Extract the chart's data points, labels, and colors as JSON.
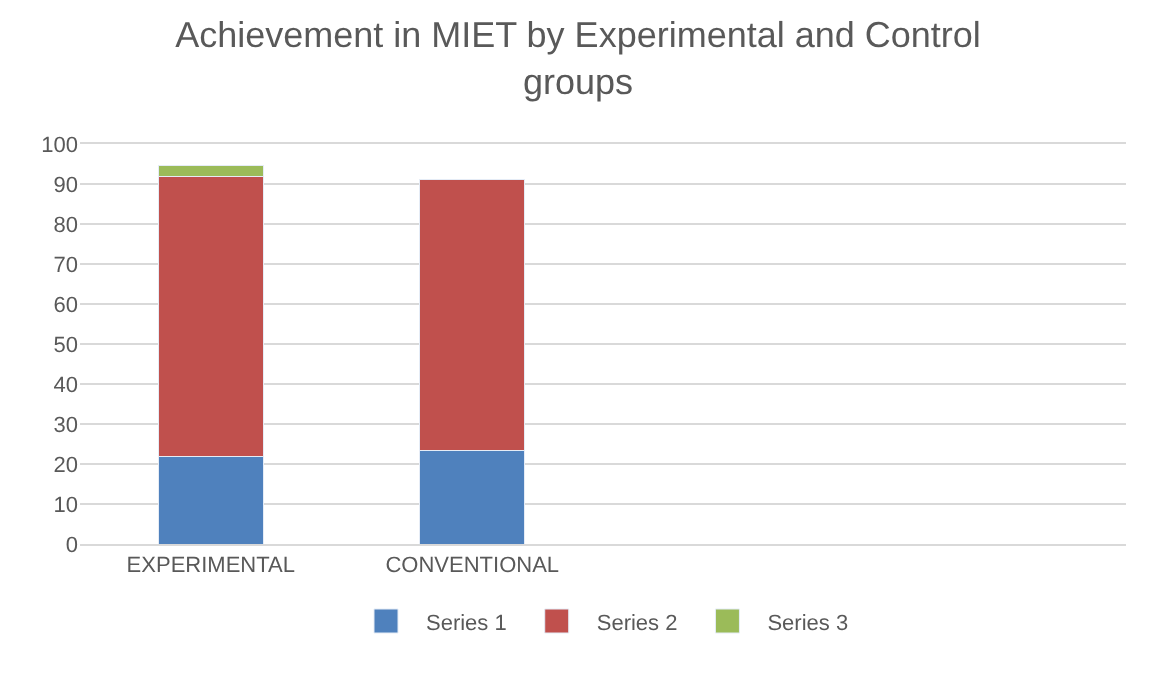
{
  "chart_data": {
    "type": "bar",
    "title": "Achievement in MIET by Experimental and Control groups",
    "categories": [
      "EXPERIMENTAL",
      "CONVENTIONAL",
      null,
      null
    ],
    "stacked": true,
    "ylim": [
      0,
      100
    ],
    "yticks": [
      0,
      10,
      20,
      30,
      40,
      50,
      60,
      70,
      80,
      90,
      100
    ],
    "grid": "y",
    "legend": "bottom",
    "series": [
      {
        "name": "Series 1",
        "color": "#4f81bd",
        "values": [
          21.8,
          23.3,
          null,
          null
        ]
      },
      {
        "name": "Series 2",
        "color": "#c0504d",
        "values": [
          70.0,
          67.8,
          null,
          null
        ]
      },
      {
        "name": "Series 3",
        "color": "#9bbb59",
        "values": [
          2.8,
          null,
          null,
          null
        ]
      }
    ]
  }
}
